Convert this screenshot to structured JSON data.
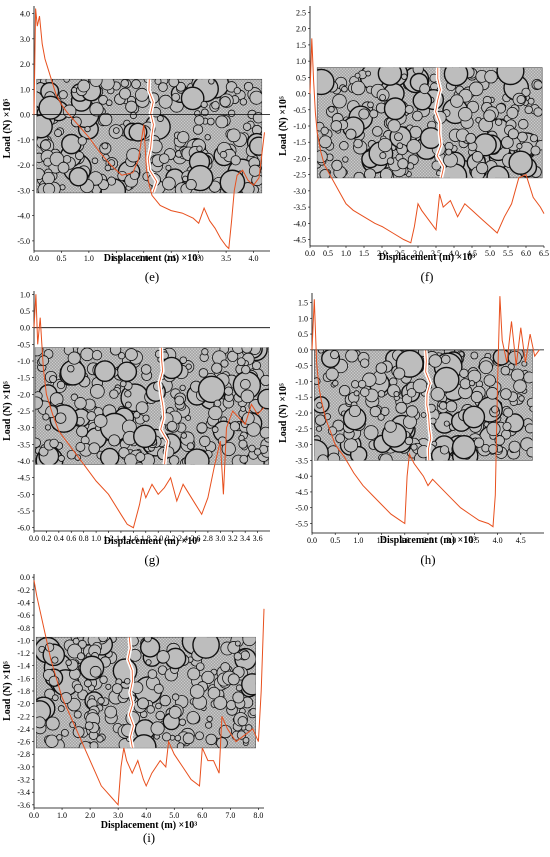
{
  "chart_data": [
    {
      "panel": "(e)",
      "type": "line",
      "xlabel": "Displacement (m) ×10³",
      "ylabel": "Load (N) ×10⁵",
      "xlim": [
        0,
        4.3
      ],
      "ylim": [
        -5.4,
        4.3
      ],
      "xticks": [
        "0.0",
        "0.5",
        "1.0",
        "1.5",
        "2.0",
        "2.5",
        "3.0",
        "3.5",
        "4.0"
      ],
      "xtick_values": [
        0,
        0.5,
        1,
        1.5,
        2,
        2.5,
        3,
        3.5,
        4
      ],
      "yticks": [
        "4.0",
        "3.0",
        "2.0",
        "1.0",
        "0.0",
        "-1.0",
        "-2.0",
        "-3.0",
        "-4.0",
        "-5.0"
      ],
      "ytick_values": [
        4,
        3,
        2,
        1,
        0,
        -1,
        -2,
        -3,
        -4,
        -5
      ],
      "zero_line": true,
      "specimen": {
        "x": [
          0.05,
          4.15
        ],
        "y": [
          -3.1,
          1.4
        ],
        "crack_x": [
          2.1
        ]
      },
      "series": [
        {
          "color": "#e8501e",
          "x": [
            0,
            0.03,
            0.06,
            0.1,
            0.15,
            0.2,
            0.3,
            0.4,
            0.5,
            0.6,
            0.8,
            1.0,
            1.2,
            1.4,
            1.6,
            1.8,
            1.9,
            2.0,
            2.05,
            2.1,
            2.15,
            2.3,
            2.5,
            2.7,
            2.9,
            3.0,
            3.1,
            3.2,
            3.3,
            3.4,
            3.5,
            3.55,
            3.6,
            3.65,
            3.7,
            3.8,
            3.9,
            4.0,
            4.1,
            4.2
          ],
          "y": [
            0,
            4.2,
            3.5,
            3.9,
            2.8,
            2.2,
            1.5,
            0.8,
            0.4,
            0.1,
            -0.4,
            -0.9,
            -1.5,
            -2.0,
            -2.4,
            -2.3,
            -1.8,
            -0.4,
            -2.2,
            -2.8,
            -3.2,
            -3.6,
            -3.8,
            -3.9,
            -4.1,
            -4.3,
            -3.7,
            -4.2,
            -4.5,
            -4.9,
            -5.2,
            -5.3,
            -4.2,
            -3.0,
            -2.4,
            -2.2,
            -2.6,
            -2.8,
            -2.5,
            -0.7
          ]
        }
      ]
    },
    {
      "panel": "(f)",
      "type": "line",
      "xlabel": "Displacement (m) ×10³",
      "ylabel": "Load (N) ×10⁵",
      "xlim": [
        0,
        6.5
      ],
      "ylim": [
        -4.7,
        2.7
      ],
      "xticks": [
        "0.0",
        "0.5",
        "1.0",
        "1.5",
        "2.0",
        "2.5",
        "3.0",
        "3.5",
        "4.0",
        "4.5",
        "5.0",
        "5.5",
        "6.0",
        "6.5"
      ],
      "xtick_values": [
        0,
        0.5,
        1,
        1.5,
        2,
        2.5,
        3,
        3.5,
        4,
        4.5,
        5,
        5.5,
        6,
        6.5
      ],
      "yticks": [
        "2.5",
        "2.0",
        "1.5",
        "1.0",
        "0.5",
        "0.0",
        "-0.5",
        "-1.0",
        "-1.5",
        "-2.0",
        "-2.5",
        "-3.0",
        "-3.5",
        "-4.0",
        "-4.5"
      ],
      "ytick_values": [
        2.5,
        2,
        1.5,
        1,
        0.5,
        0,
        -0.5,
        -1,
        -1.5,
        -2,
        -2.5,
        -3,
        -3.5,
        -4,
        -4.5
      ],
      "zero_line": false,
      "specimen": {
        "x": [
          0.2,
          6.45
        ],
        "y": [
          -2.6,
          0.8
        ],
        "crack_x": [
          3.55
        ]
      },
      "series": [
        {
          "color": "#e8501e",
          "x": [
            0,
            0.05,
            0.1,
            0.15,
            0.2,
            0.3,
            0.4,
            0.6,
            0.8,
            1.0,
            1.2,
            1.5,
            1.8,
            2.0,
            2.3,
            2.6,
            2.8,
            2.9,
            3.0,
            3.1,
            3.3,
            3.5,
            3.6,
            3.7,
            3.9,
            4.1,
            4.3,
            4.5,
            4.8,
            5.0,
            5.2,
            5.4,
            5.6,
            5.8,
            6.0,
            6.2,
            6.4,
            6.5
          ],
          "y": [
            0,
            1.7,
            0.4,
            -0.6,
            -1.2,
            -1.8,
            -2.2,
            -2.6,
            -3.0,
            -3.4,
            -3.6,
            -3.8,
            -4.0,
            -4.1,
            -4.3,
            -4.5,
            -4.6,
            -4.1,
            -3.4,
            -3.6,
            -3.9,
            -4.2,
            -3.1,
            -3.5,
            -3.3,
            -3.8,
            -3.4,
            -3.6,
            -3.9,
            -4.1,
            -4.3,
            -3.8,
            -3.4,
            -2.6,
            -2.5,
            -3.2,
            -3.5,
            -3.7
          ]
        }
      ]
    },
    {
      "panel": "(g)",
      "type": "line",
      "xlabel": "Displacement (m) ×10³",
      "ylabel": "Load (N) ×10⁵",
      "xlim": [
        0,
        3.8
      ],
      "ylim": [
        -6.1,
        1.1
      ],
      "xticks": [
        "0.0",
        "0.2",
        "0.4",
        "0.6",
        "0.8",
        "1.0",
        "1.2",
        "1.4",
        "1.6",
        "1.8",
        "2.0",
        "2.2",
        "2.4",
        "2.6",
        "2.8",
        "3.0",
        "3.2",
        "3.4",
        "3.6"
      ],
      "xtick_values": [
        0,
        0.2,
        0.4,
        0.6,
        0.8,
        1.0,
        1.2,
        1.4,
        1.6,
        1.8,
        2.0,
        2.2,
        2.4,
        2.6,
        2.8,
        3.0,
        3.2,
        3.4,
        3.6
      ],
      "yticks": [
        "1.0",
        "0.5",
        "0.0",
        "-0.5",
        "-1.0",
        "-1.5",
        "-2.0",
        "-2.5",
        "-3.0",
        "-3.5",
        "-4.0",
        "-4.5",
        "-5.0",
        "-5.5",
        "-6.0"
      ],
      "ytick_values": [
        1,
        0.5,
        0,
        -0.5,
        -1,
        -1.5,
        -2,
        -2.5,
        -3,
        -3.5,
        -4,
        -4.5,
        -5,
        -5.5,
        -6
      ],
      "zero_line": true,
      "specimen": {
        "x": [
          0.02,
          3.78
        ],
        "y": [
          -4.1,
          -0.6
        ],
        "crack_x": [
          2.05
        ]
      },
      "series": [
        {
          "color": "#e8501e",
          "x": [
            0,
            0.03,
            0.06,
            0.1,
            0.15,
            0.2,
            0.3,
            0.4,
            0.6,
            0.8,
            1.0,
            1.2,
            1.4,
            1.5,
            1.6,
            1.7,
            1.75,
            1.8,
            1.9,
            2.0,
            2.1,
            2.2,
            2.3,
            2.4,
            2.5,
            2.6,
            2.7,
            2.8,
            2.9,
            3.0,
            3.05,
            3.1,
            3.2,
            3.3,
            3.4,
            3.5,
            3.6,
            3.7
          ],
          "y": [
            0,
            1.0,
            -0.5,
            0.3,
            -1.2,
            -2.0,
            -2.6,
            -3.1,
            -3.6,
            -4.1,
            -4.6,
            -5.0,
            -5.6,
            -5.9,
            -6.0,
            -5.3,
            -4.8,
            -5.1,
            -4.7,
            -5.0,
            -4.8,
            -4.5,
            -5.2,
            -4.7,
            -5.0,
            -5.3,
            -5.6,
            -5.1,
            -4.2,
            -3.4,
            -5.0,
            -3.0,
            -2.5,
            -2.7,
            -2.9,
            -2.3,
            -2.6,
            -2.4
          ]
        }
      ]
    },
    {
      "panel": "(h)",
      "type": "line",
      "xlabel": "Displacement (m) ×10³",
      "ylabel": "Load (N) ×10⁵",
      "xlim": [
        0,
        5.0
      ],
      "ylim": [
        -5.8,
        1.8
      ],
      "xticks": [
        "0.0",
        "0.5",
        "1.0",
        "1.5",
        "2.0",
        "2.5",
        "3.0",
        "3.5",
        "4.0",
        "4.5"
      ],
      "xtick_values": [
        0,
        0.5,
        1,
        1.5,
        2,
        2.5,
        3,
        3.5,
        4,
        4.5
      ],
      "yticks": [
        "1.5",
        "1.0",
        "0.5",
        "0.0",
        "-0.5",
        "-1.0",
        "-1.5",
        "-2.0",
        "-2.5",
        "-3.0",
        "-3.5",
        "-4.0",
        "-4.5",
        "-5.0",
        "-5.5"
      ],
      "ytick_values": [
        1.5,
        1,
        0.5,
        0,
        -0.5,
        -1,
        -1.5,
        -2,
        -2.5,
        -3,
        -3.5,
        -4,
        -4.5,
        -5,
        -5.5
      ],
      "zero_line": true,
      "specimen": {
        "x": [
          0.05,
          4.75
        ],
        "y": [
          -3.5,
          0.0
        ],
        "crack_x": [
          2.45
        ]
      },
      "series": [
        {
          "color": "#e8501e",
          "x": [
            0,
            0.05,
            0.1,
            0.15,
            0.2,
            0.3,
            0.4,
            0.5,
            0.7,
            0.9,
            1.1,
            1.3,
            1.5,
            1.7,
            1.9,
            2.0,
            2.05,
            2.1,
            2.2,
            2.3,
            2.4,
            2.5,
            2.6,
            2.8,
            3.0,
            3.2,
            3.4,
            3.6,
            3.8,
            3.9,
            3.95,
            4.0,
            4.05,
            4.1,
            4.2,
            4.3,
            4.4,
            4.5,
            4.6,
            4.7,
            4.8,
            4.9
          ],
          "y": [
            0,
            1.6,
            -0.4,
            -1.2,
            -1.6,
            -2.2,
            -2.6,
            -3.0,
            -3.4,
            -3.9,
            -4.3,
            -4.6,
            -4.9,
            -5.2,
            -5.4,
            -5.5,
            -4.0,
            -3.3,
            -3.6,
            -3.8,
            -4.0,
            -4.3,
            -4.1,
            -4.4,
            -4.7,
            -5.0,
            -5.2,
            -5.4,
            -5.5,
            -5.6,
            -4.6,
            -1.0,
            1.7,
            0.3,
            -0.4,
            0.9,
            -0.5,
            0.7,
            -0.4,
            0.5,
            -0.2,
            0.0
          ]
        }
      ]
    },
    {
      "panel": "(i)",
      "type": "line",
      "xlabel": "Displacement (m) ×10³",
      "ylabel": "Load (N) ×10⁵",
      "xlim": [
        0,
        8.2
      ],
      "ylim": [
        -3.65,
        0.05
      ],
      "xticks": [
        "0.0",
        "1.0",
        "2.0",
        "3.0",
        "4.0",
        "5.0",
        "6.0",
        "7.0",
        "8.0"
      ],
      "xtick_values": [
        0,
        1,
        2,
        3,
        4,
        5,
        6,
        7,
        8
      ],
      "yticks": [
        "0.0",
        "-0.2",
        "-0.4",
        "-0.6",
        "-0.8",
        "-1.0",
        "-1.2",
        "-1.4",
        "-1.6",
        "-1.8",
        "-2.0",
        "-2.2",
        "-2.4",
        "-2.6",
        "-2.8",
        "-3.0",
        "-3.2",
        "-3.4",
        "-3.6"
      ],
      "ytick_values": [
        0,
        -0.2,
        -0.4,
        -0.6,
        -0.8,
        -1.0,
        -1.2,
        -1.4,
        -1.6,
        -1.8,
        -2.0,
        -2.2,
        -2.4,
        -2.6,
        -2.8,
        -3.0,
        -3.2,
        -3.4,
        -3.6
      ],
      "zero_line": false,
      "specimen": {
        "x": [
          0.08,
          7.9
        ],
        "y": [
          -2.7,
          -0.95
        ],
        "crack_x": [
          3.4
        ]
      },
      "series": [
        {
          "color": "#e8501e",
          "x": [
            0,
            0.1,
            0.2,
            0.4,
            0.6,
            0.8,
            1.0,
            1.2,
            1.5,
            1.8,
            2.0,
            2.2,
            2.4,
            2.6,
            2.8,
            3.0,
            3.1,
            3.2,
            3.3,
            3.5,
            3.7,
            3.9,
            4.0,
            4.2,
            4.5,
            4.7,
            4.8,
            5.0,
            5.3,
            5.6,
            5.9,
            6.0,
            6.2,
            6.4,
            6.6,
            6.7,
            6.9,
            7.2,
            7.5,
            7.8,
            8.0,
            8.1,
            8.2
          ],
          "y": [
            -0.05,
            -0.3,
            -0.5,
            -0.9,
            -1.3,
            -1.6,
            -1.9,
            -2.1,
            -2.4,
            -2.7,
            -2.9,
            -3.1,
            -3.3,
            -3.4,
            -3.5,
            -3.6,
            -3.0,
            -2.7,
            -2.9,
            -3.1,
            -2.9,
            -3.2,
            -3.3,
            -3.1,
            -2.9,
            -3.0,
            -2.6,
            -2.8,
            -3.0,
            -3.2,
            -3.3,
            -2.7,
            -2.9,
            -2.9,
            -3.1,
            -2.2,
            -2.4,
            -2.6,
            -2.5,
            -2.4,
            -2.6,
            -1.8,
            -0.5
          ]
        }
      ]
    }
  ]
}
